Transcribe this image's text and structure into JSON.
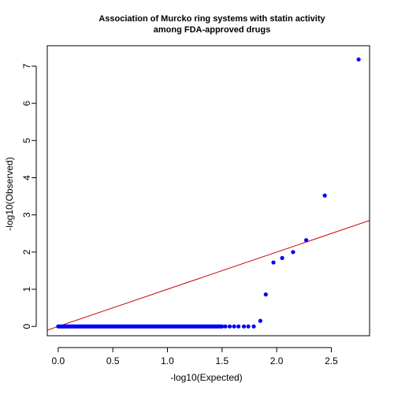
{
  "chart_data": {
    "type": "scatter",
    "title": [
      "Association of Murcko ring systems with statin activity",
      "among FDA-approved drugs"
    ],
    "xlabel": "-log10(Expected)",
    "ylabel": "-log10(Observed)",
    "xlim": [
      -0.1,
      2.85
    ],
    "ylim": [
      -0.25,
      7.55
    ],
    "xticks": [
      0.0,
      0.5,
      1.0,
      1.5,
      2.0,
      2.5
    ],
    "xtick_labels": [
      "0.0",
      "0.5",
      "1.0",
      "1.5",
      "2.0",
      "2.5"
    ],
    "yticks": [
      0,
      1,
      2,
      3,
      4,
      5,
      6,
      7
    ],
    "ytick_labels": [
      "0",
      "1",
      "2",
      "3",
      "4",
      "5",
      "6",
      "7"
    ],
    "point_color": "#0000ff",
    "reference_line": {
      "slope": 1,
      "intercept": 0,
      "color": "#cc0000"
    },
    "grid": false,
    "zero_points": {
      "y": 0,
      "x_dense_range": [
        0.0,
        1.5
      ],
      "x_sparse": [
        1.53,
        1.57,
        1.61,
        1.65,
        1.7,
        1.74,
        1.79
      ]
    },
    "points": [
      {
        "x": 1.85,
        "y": 0.15
      },
      {
        "x": 1.9,
        "y": 0.86
      },
      {
        "x": 1.97,
        "y": 1.72
      },
      {
        "x": 2.05,
        "y": 1.84
      },
      {
        "x": 2.15,
        "y": 2.0
      },
      {
        "x": 2.27,
        "y": 2.32
      },
      {
        "x": 2.44,
        "y": 3.52
      },
      {
        "x": 2.75,
        "y": 7.18
      }
    ]
  }
}
